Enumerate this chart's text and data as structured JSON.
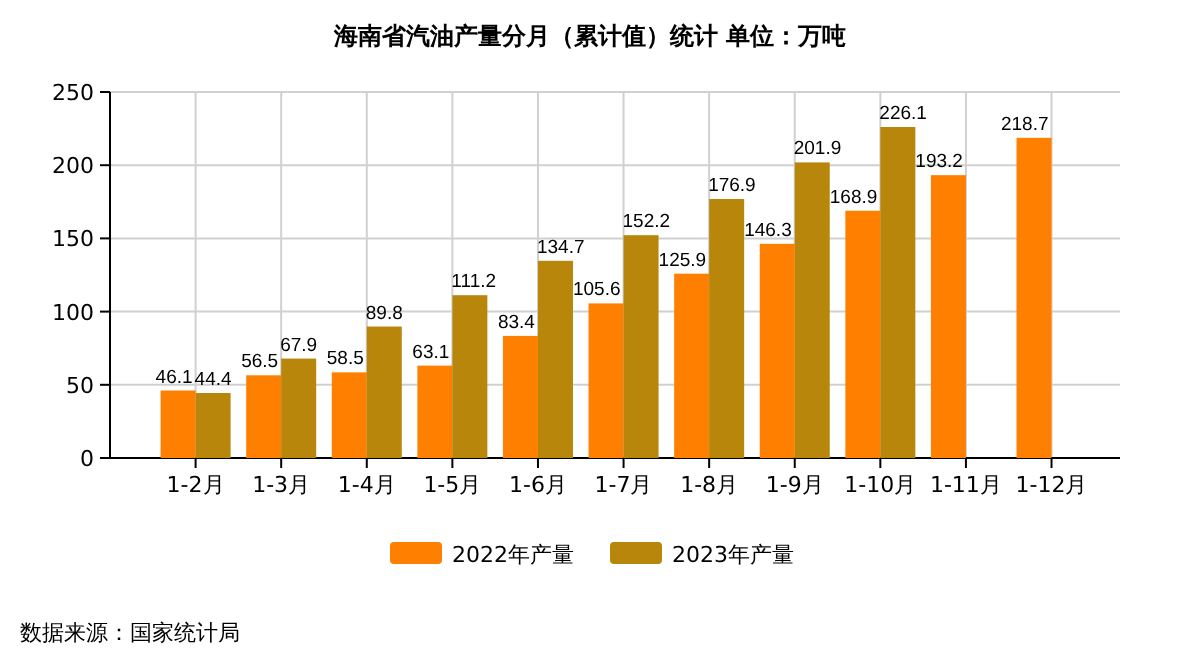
{
  "chart_data": {
    "type": "bar",
    "title": "海南省汽油产量分月（累计值）统计 单位：万吨",
    "categories": [
      "1-2月",
      "1-3月",
      "1-4月",
      "1-5月",
      "1-6月",
      "1-7月",
      "1-8月",
      "1-9月",
      "1-10月",
      "1-11月",
      "1-12月"
    ],
    "series": [
      {
        "name": "2022年产量",
        "color": "#ff8000",
        "values": [
          46.1,
          56.5,
          58.5,
          63.1,
          83.4,
          105.6,
          125.9,
          146.3,
          168.9,
          193.2,
          218.7
        ]
      },
      {
        "name": "2023年产量",
        "color": "#b8860b",
        "values": [
          44.4,
          67.9,
          89.8,
          111.2,
          134.7,
          152.2,
          176.9,
          201.9,
          226.1,
          null,
          null
        ]
      }
    ],
    "ylim": [
      0,
      250
    ],
    "yticks": [
      0,
      50,
      100,
      150,
      200,
      250
    ],
    "grid": true,
    "legend": "bottom",
    "data_labels": true,
    "annotations": [
      "数据来源：国家统计局"
    ]
  }
}
